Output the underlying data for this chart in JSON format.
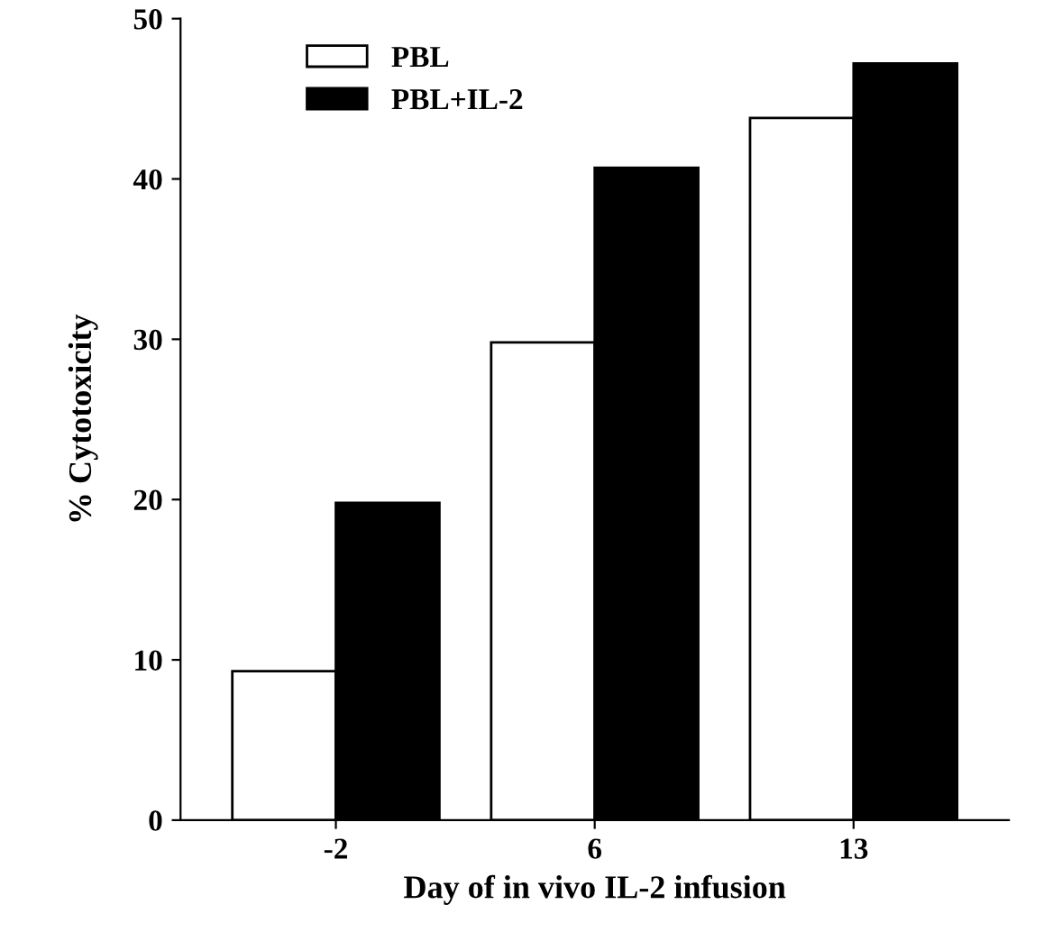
{
  "chart_data": {
    "type": "bar",
    "xlabel": "Day of in vivo IL-2 infusion",
    "ylabel": "% Cytotoxicity",
    "categories": [
      "-2",
      "6",
      "13"
    ],
    "series": [
      {
        "name": "PBL",
        "color": "#ffffff",
        "values": [
          9.3,
          29.8,
          43.8
        ]
      },
      {
        "name": "PBL+IL-2",
        "color": "#000000",
        "values": [
          19.8,
          40.7,
          47.2
        ]
      }
    ],
    "ylim": [
      0,
      50
    ],
    "yticks": [
      0,
      10,
      20,
      30,
      40,
      50
    ],
    "grid": false,
    "legend": "top left"
  }
}
